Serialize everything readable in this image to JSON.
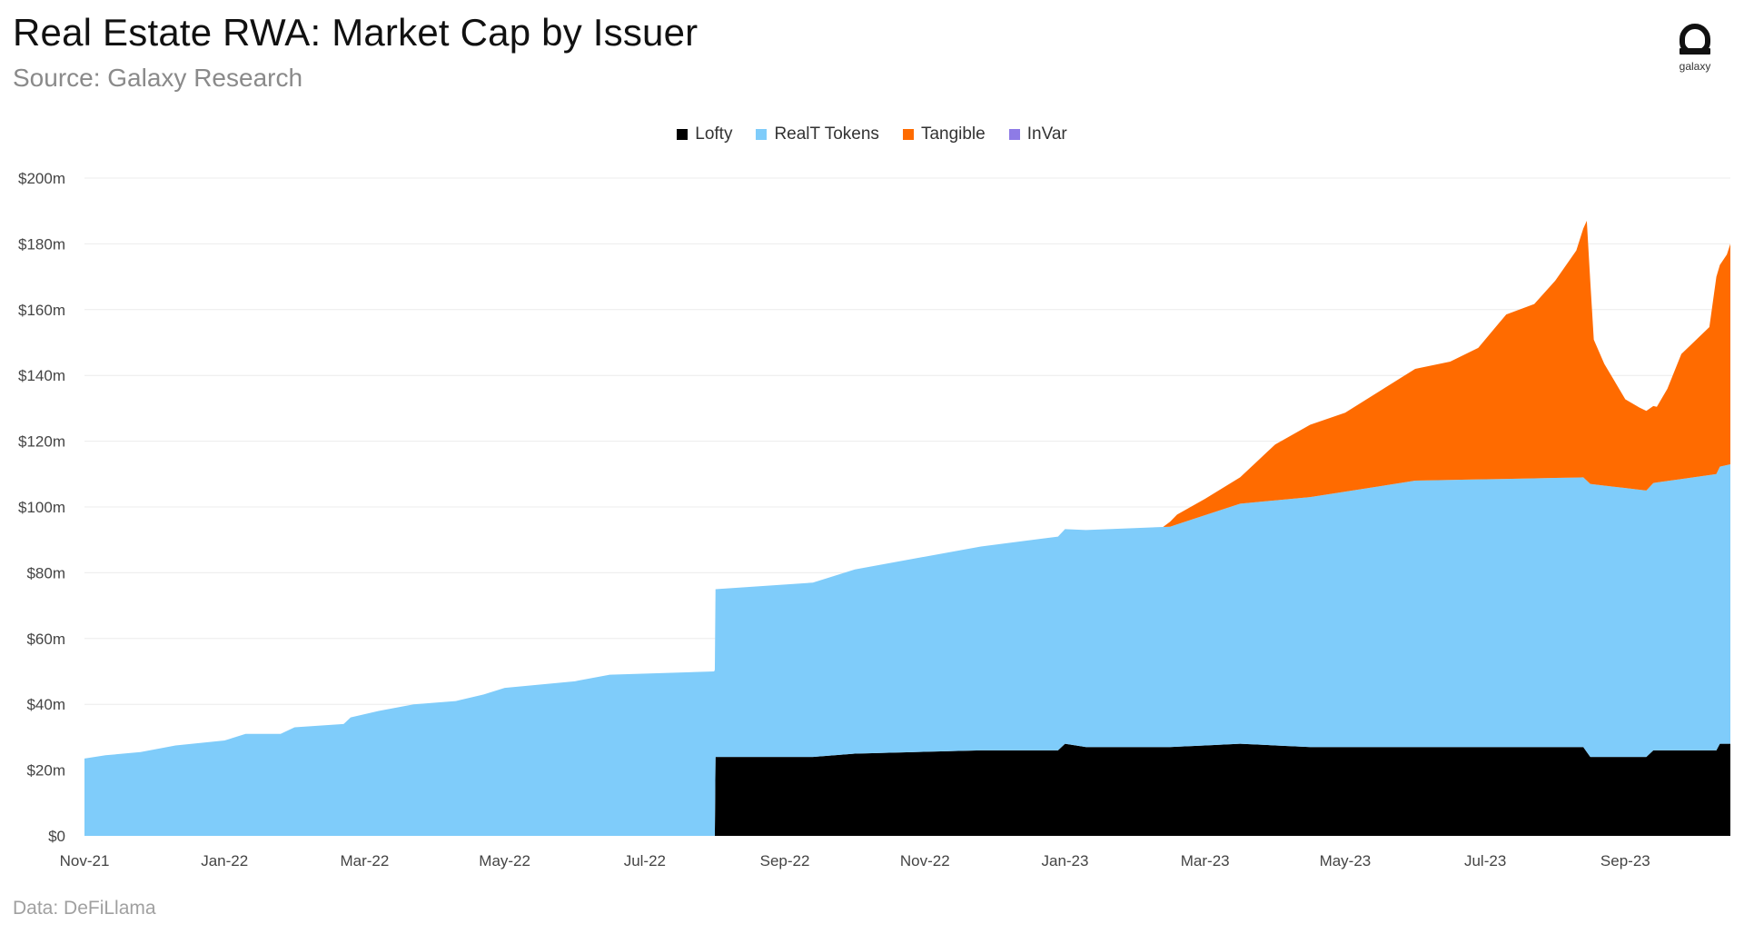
{
  "header": {
    "title": "Real Estate RWA: Market Cap by Issuer",
    "subtitle": "Source: Galaxy Research",
    "logo_text": "galaxy"
  },
  "footer": {
    "note": "Data: DeFiLlama"
  },
  "chart_data": {
    "type": "area",
    "stacked": true,
    "title": "Real Estate RWA: Market Cap by Issuer",
    "xlabel": "",
    "ylabel": "",
    "ylim": [
      0,
      200
    ],
    "yticks": [
      0,
      20,
      40,
      60,
      80,
      100,
      120,
      140,
      160,
      180,
      200
    ],
    "ytick_labels": [
      "$0",
      "$20m",
      "$40m",
      "$60m",
      "$80m",
      "$100m",
      "$120m",
      "$140m",
      "$160m",
      "$180m",
      "$200m"
    ],
    "xlim": [
      0,
      23.5
    ],
    "xticks": [
      0,
      2,
      4,
      6,
      8,
      10,
      12,
      14,
      16,
      18,
      20,
      22
    ],
    "xtick_labels": [
      "Nov-21",
      "Jan-22",
      "Mar-22",
      "May-22",
      "Jul-22",
      "Sep-22",
      "Nov-22",
      "Jan-23",
      "Mar-23",
      "May-23",
      "Jul-23",
      "Sep-23"
    ],
    "grid": true,
    "legend_position": "top-center",
    "series": [
      {
        "name": "Lofty",
        "color": "#000000",
        "points": [
          [
            0,
            0
          ],
          [
            9.0,
            0
          ],
          [
            9.01,
            24
          ],
          [
            10.4,
            24
          ],
          [
            11,
            25
          ],
          [
            12.8,
            26
          ],
          [
            13.9,
            26
          ],
          [
            14.0,
            28
          ],
          [
            14.3,
            27
          ],
          [
            15.5,
            27
          ],
          [
            16.5,
            28
          ],
          [
            17.5,
            27
          ],
          [
            19,
            27
          ],
          [
            21.4,
            27
          ],
          [
            21.5,
            24
          ],
          [
            22.3,
            24
          ],
          [
            22.4,
            26
          ],
          [
            23.3,
            26
          ],
          [
            23.35,
            28
          ],
          [
            23.5,
            28
          ]
        ]
      },
      {
        "name": "RealT Tokens",
        "color": "#7fccfa",
        "points": [
          [
            0,
            23.5
          ],
          [
            0.3,
            24.5
          ],
          [
            0.8,
            25.5
          ],
          [
            1.3,
            27.5
          ],
          [
            2,
            29
          ],
          [
            2.3,
            31
          ],
          [
            2.8,
            31
          ],
          [
            3,
            33
          ],
          [
            3.7,
            34
          ],
          [
            3.8,
            36
          ],
          [
            4.2,
            38
          ],
          [
            4.7,
            40
          ],
          [
            5.3,
            41
          ],
          [
            5.7,
            43
          ],
          [
            6,
            45
          ],
          [
            7,
            47
          ],
          [
            7.5,
            49
          ],
          [
            8.99,
            50
          ],
          [
            9.01,
            51
          ],
          [
            10.4,
            53
          ],
          [
            11,
            56
          ],
          [
            12.8,
            62
          ],
          [
            13.9,
            65
          ],
          [
            14.3,
            66
          ],
          [
            15.5,
            67
          ],
          [
            16.5,
            73
          ],
          [
            17.5,
            76
          ],
          [
            19,
            81
          ],
          [
            21.4,
            82
          ],
          [
            21.5,
            83
          ],
          [
            22.3,
            81
          ],
          [
            23.3,
            84
          ],
          [
            23.5,
            85
          ]
        ]
      },
      {
        "name": "Tangible",
        "color": "#ff6b00",
        "points": [
          [
            0,
            0
          ],
          [
            15.4,
            0
          ],
          [
            15.6,
            3
          ],
          [
            16.0,
            5
          ],
          [
            16.5,
            8
          ],
          [
            17.0,
            17
          ],
          [
            17.5,
            22
          ],
          [
            18.0,
            24
          ],
          [
            18.5,
            29
          ],
          [
            19.0,
            34
          ],
          [
            19.5,
            36
          ],
          [
            19.9,
            40
          ],
          [
            20.3,
            50
          ],
          [
            20.7,
            53
          ],
          [
            21.0,
            60
          ],
          [
            21.3,
            69
          ],
          [
            21.45,
            79
          ],
          [
            21.55,
            44
          ],
          [
            21.7,
            37
          ],
          [
            22.0,
            27
          ],
          [
            22.2,
            25
          ],
          [
            22.45,
            23
          ],
          [
            22.6,
            28
          ],
          [
            22.8,
            38
          ],
          [
            23.2,
            45
          ],
          [
            23.3,
            60
          ],
          [
            23.45,
            64
          ],
          [
            23.5,
            67
          ]
        ]
      },
      {
        "name": "InVar",
        "color": "#8e7be6",
        "points": [
          [
            0,
            0
          ],
          [
            23.5,
            0
          ]
        ]
      }
    ]
  }
}
